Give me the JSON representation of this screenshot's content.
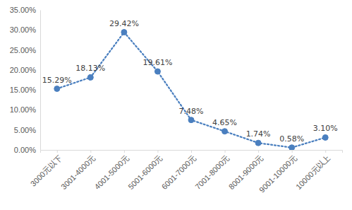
{
  "chart_data": {
    "type": "line",
    "categories": [
      "3000元以下",
      "3001-4000元",
      "4001-5000元",
      "5001-6000元",
      "6001-7000元",
      "7001-8000元",
      "8001-9000元",
      "9001-10000元",
      "10000元以上"
    ],
    "values": [
      15.29,
      18.13,
      29.42,
      19.61,
      7.48,
      4.65,
      1.74,
      0.58,
      3.1
    ],
    "value_labels": [
      "15.29%",
      "18.13%",
      "29.42%",
      "19.61%",
      "7.48%",
      "4.65%",
      "1.74%",
      "0.58%",
      "3.10%"
    ],
    "color": "#4a7fbf",
    "marker": "circle",
    "line_style": "dotted",
    "data_labels": true,
    "grid": false,
    "ylim": [
      0,
      35
    ],
    "yticks": [
      {
        "value": 0,
        "label": "0.00%"
      },
      {
        "value": 5,
        "label": "5.00%"
      },
      {
        "value": 10,
        "label": "10.00%"
      },
      {
        "value": 15,
        "label": "15.00%"
      },
      {
        "value": 20,
        "label": "20.00%"
      },
      {
        "value": 25,
        "label": "25.00%"
      },
      {
        "value": 30,
        "label": "30.00%"
      },
      {
        "value": 35,
        "label": "35.00%"
      }
    ]
  }
}
